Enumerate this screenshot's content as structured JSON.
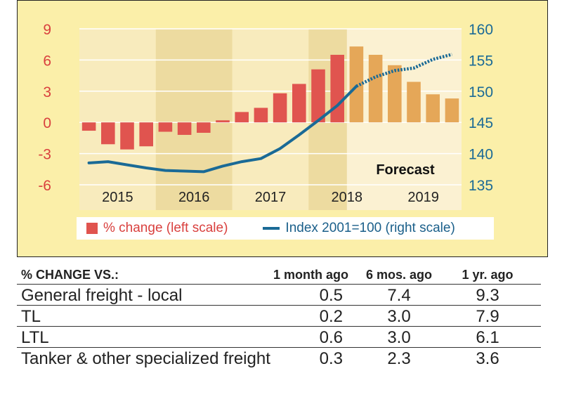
{
  "chart_data": {
    "type": "bar+line",
    "x": [
      "2015 Q1",
      "2015 Q2",
      "2015 Q3",
      "2015 Q4",
      "2016 Q1",
      "2016 Q2",
      "2016 Q3",
      "2016 Q4",
      "2017 Q1",
      "2017 Q2",
      "2017 Q3",
      "2017 Q4",
      "2018 Q1",
      "2018 Q2",
      "2018 Q3",
      "2018 Q4",
      "2019 Q1",
      "2019 Q2",
      "2019 Q3",
      "2019 Q4"
    ],
    "year_labels": [
      "2015",
      "2016",
      "2017",
      "2018",
      "2019"
    ],
    "series": [
      {
        "name": "% change (left scale)",
        "axis": "left",
        "kind": "bar",
        "values": [
          -0.8,
          -2.1,
          -2.6,
          -2.3,
          -0.9,
          -1.2,
          -1.0,
          0.2,
          1.0,
          1.4,
          2.8,
          3.7,
          5.1,
          6.5,
          7.3,
          6.5,
          5.5,
          3.9,
          2.7,
          2.3
        ],
        "forecast_from_index": 14,
        "color": "#e0544f",
        "forecast_color": "#e5a758"
      },
      {
        "name": "Index 2001=100 (right scale)",
        "axis": "right",
        "kind": "line",
        "values": [
          138.5,
          138.7,
          138.2,
          137.7,
          137.3,
          137.2,
          137.1,
          138.0,
          138.7,
          139.2,
          140.8,
          143.0,
          145.3,
          147.7,
          150.8,
          152.3,
          153.3,
          153.7,
          155.1,
          155.9
        ],
        "forecast_from_index": 14,
        "color": "#1a6a96"
      }
    ],
    "y_left": {
      "range": [
        -6,
        9
      ],
      "ticks": [
        "-6",
        "-3",
        "0",
        "3",
        "6",
        "9"
      ]
    },
    "y_right": {
      "range": [
        135,
        160
      ],
      "ticks": [
        "135",
        "140",
        "145",
        "150",
        "155",
        "160"
      ]
    },
    "annotation": "Forecast",
    "forecast_start_x": "2018 Q3",
    "colors": {
      "left_axis": "#d9403e",
      "right_axis": "#1a6a96",
      "panel": "#fbefa9",
      "band_dark": "#eddba0",
      "band_light": "#f8ebbd",
      "grid": "#ffffff"
    }
  },
  "legend": {
    "bar_label": "% change (left scale)",
    "line_label": "Index 2001=100 (right scale)"
  },
  "table": {
    "headers": [
      "% CHANGE VS.:",
      "1 month ago",
      "6 mos. ago",
      "1 yr. ago"
    ],
    "rows": [
      [
        "General freight - local",
        "0.5",
        "7.4",
        "9.3"
      ],
      [
        "TL",
        "0.2",
        "3.0",
        "7.9"
      ],
      [
        "LTL",
        "0.6",
        "3.0",
        "6.1"
      ],
      [
        "Tanker & other specialized freight",
        "0.3",
        "2.3",
        "3.6"
      ]
    ]
  }
}
